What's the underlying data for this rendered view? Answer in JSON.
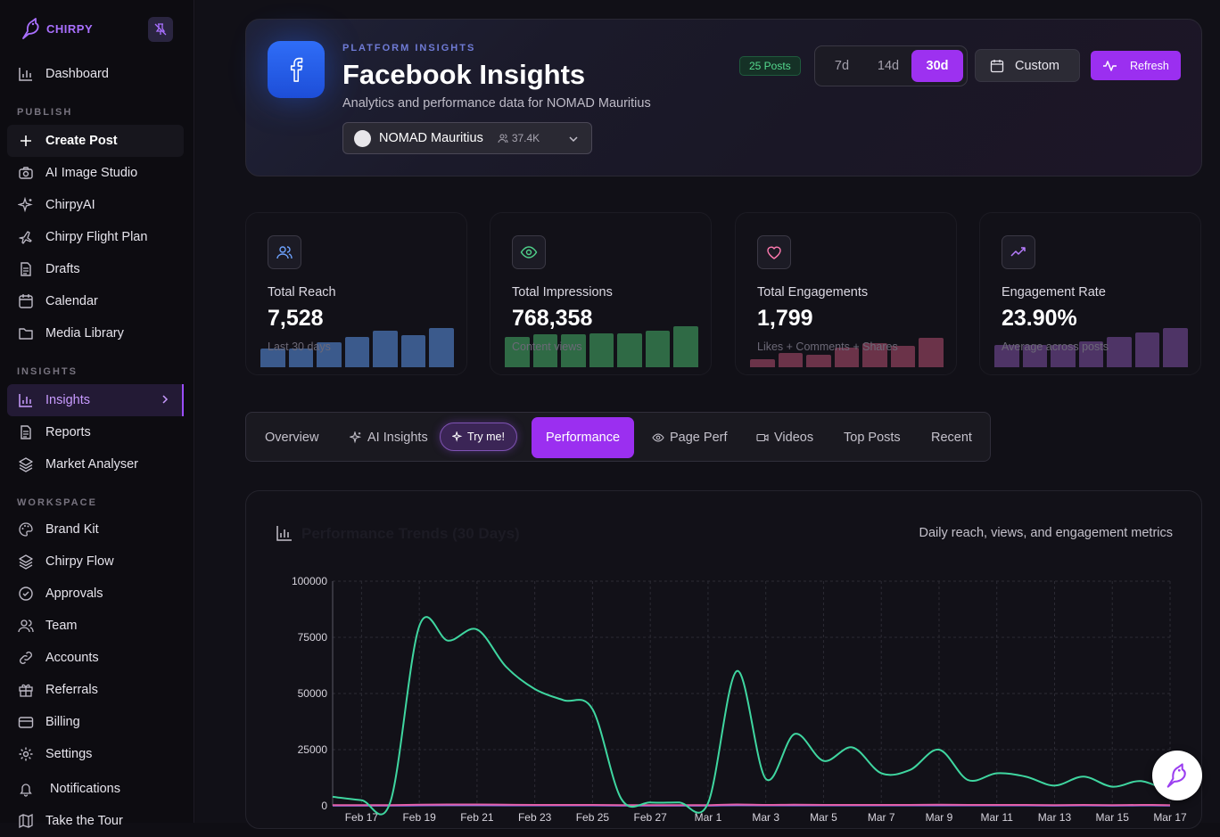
{
  "sidebar": {
    "brand": "CHIRPY",
    "sections": {
      "publish": "PUBLISH",
      "insights": "INSIGHTS",
      "workspace": "WORKSPACE"
    },
    "items": [
      {
        "label": "Dashboard",
        "icon": "bar-chart-icon"
      },
      {
        "label": "Create Post",
        "icon": "plus-icon"
      },
      {
        "label": "AI Image Studio",
        "icon": "camera-icon"
      },
      {
        "label": "ChirpyAI",
        "icon": "sparkles-icon"
      },
      {
        "label": "Chirpy Flight Plan",
        "icon": "plane-icon"
      },
      {
        "label": "Drafts",
        "icon": "document-icon"
      },
      {
        "label": "Calendar",
        "icon": "calendar-icon"
      },
      {
        "label": "Media Library",
        "icon": "folder-icon"
      },
      {
        "label": "Insights",
        "icon": "bar-chart-icon"
      },
      {
        "label": "Reports",
        "icon": "document-icon"
      },
      {
        "label": "Market Analyser",
        "icon": "layers-icon"
      },
      {
        "label": "Brand Kit",
        "icon": "palette-icon"
      },
      {
        "label": "Chirpy Flow",
        "icon": "layers-icon"
      },
      {
        "label": "Approvals",
        "icon": "check-circle-icon"
      },
      {
        "label": "Team",
        "icon": "users-icon"
      },
      {
        "label": "Accounts",
        "icon": "link-icon"
      },
      {
        "label": "Referrals",
        "icon": "gift-icon"
      },
      {
        "label": "Billing",
        "icon": "credit-card-icon"
      },
      {
        "label": "Settings",
        "icon": "gear-icon"
      },
      {
        "label": "Notifications",
        "icon": "bell-icon"
      },
      {
        "label": "Take the Tour",
        "icon": "map-icon"
      }
    ]
  },
  "header": {
    "eyebrow": "PLATFORM INSIGHTS",
    "title": "Facebook Insights",
    "subtitle": "Analytics and performance data for NOMAD Mauritius",
    "account": {
      "name": "NOMAD Mauritius",
      "followers": "37.4K"
    },
    "posts_badge": "25 Posts",
    "ranges": [
      "7d",
      "14d",
      "30d"
    ],
    "selected_range": "30d",
    "custom_label": "Custom",
    "refresh_label": "Refresh"
  },
  "stats": [
    {
      "label": "Total Reach",
      "value": "7,528",
      "sub": "Last 30 days",
      "color": "#3b5a8c",
      "icon": "users-icon",
      "icon_color": "#6ea3ff",
      "bars": [
        0.45,
        0.45,
        0.6,
        0.75,
        0.9,
        0.78,
        0.95
      ]
    },
    {
      "label": "Total Impressions",
      "value": "768,358",
      "sub": "Content views",
      "color": "#2f6a45",
      "icon": "eye-icon",
      "icon_color": "#4fd08a",
      "bars": [
        0.75,
        0.8,
        0.8,
        0.83,
        0.83,
        0.9,
        1.0
      ]
    },
    {
      "label": "Total Engagements",
      "value": "1,799",
      "sub": "Likes + Comments + Shares",
      "color": "#6b3349",
      "icon": "heart-icon",
      "icon_color": "#ff7ab0",
      "bars": [
        0.2,
        0.35,
        0.3,
        0.48,
        0.58,
        0.52,
        0.72
      ]
    },
    {
      "label": "Engagement Rate",
      "value": "23.90%",
      "sub": "Average across posts",
      "color": "#4e3466",
      "icon": "trending-up-icon",
      "icon_color": "#b77cff",
      "bars": [
        0.55,
        0.55,
        0.55,
        0.62,
        0.75,
        0.85,
        0.95
      ]
    }
  ],
  "tabs": [
    {
      "label": "Overview",
      "icon": ""
    },
    {
      "label": "AI Insights",
      "icon": "sparkles-icon"
    },
    {
      "label": "Performance",
      "icon": ""
    },
    {
      "label": "Page Perf",
      "icon": "eye-icon"
    },
    {
      "label": "Videos",
      "icon": "video-icon"
    },
    {
      "label": "Top Posts",
      "icon": ""
    },
    {
      "label": "Recent",
      "icon": ""
    }
  ],
  "try_me": "Try me!",
  "selected_tab": "Performance",
  "chart_card": {
    "title": "Performance Trends (30 Days)",
    "description": "Daily reach, views, and engagement metrics"
  },
  "chart_data": {
    "type": "line",
    "ylim": [
      0,
      100000
    ],
    "yticks": [
      0,
      25000,
      50000,
      75000,
      100000
    ],
    "x": [
      "Feb 16",
      "Feb 17",
      "Feb 18",
      "Feb 19",
      "Feb 20",
      "Feb 21",
      "Feb 22",
      "Feb 23",
      "Feb 24",
      "Feb 25",
      "Feb 26",
      "Feb 27",
      "Feb 28",
      "Mar 1",
      "Mar 2",
      "Mar 3",
      "Mar 4",
      "Mar 5",
      "Mar 6",
      "Mar 7",
      "Mar 8",
      "Mar 9",
      "Mar 10",
      "Mar 11",
      "Mar 12",
      "Mar 13",
      "Mar 14",
      "Mar 15",
      "Mar 16",
      "Mar 17"
    ],
    "xtick_labels": [
      "Feb 17",
      "Feb 19",
      "Feb 21",
      "Feb 23",
      "Feb 25",
      "Feb 27",
      "Mar 1",
      "Mar 3",
      "Mar 5",
      "Mar 7",
      "Mar 9",
      "Mar 11",
      "Mar 13",
      "Mar 15",
      "Mar 17"
    ],
    "series": [
      {
        "color": "#3fd6a0",
        "values": [
          4000,
          2500,
          1800,
          80000,
          73500,
          78500,
          62000,
          52000,
          47000,
          43000,
          3000,
          1500,
          1500,
          1200,
          60000,
          12000,
          32000,
          20000,
          26000,
          14500,
          16000,
          25000,
          11500,
          14500,
          13000,
          9000,
          13000,
          8500,
          11000,
          6000
        ]
      },
      {
        "color": "#e35fa8",
        "values": [
          300,
          300,
          300,
          500,
          600,
          600,
          500,
          400,
          400,
          400,
          300,
          300,
          300,
          300,
          600,
          400,
          500,
          400,
          400,
          400,
          400,
          500,
          400,
          400,
          400,
          300,
          400,
          300,
          400,
          300
        ]
      },
      {
        "color": "#7a78ff",
        "values": [
          100,
          100,
          100,
          200,
          300,
          300,
          200,
          200,
          200,
          200,
          100,
          100,
          100,
          100,
          300,
          200,
          200,
          200,
          200,
          200,
          200,
          200,
          200,
          200,
          200,
          100,
          200,
          100,
          200,
          100
        ]
      }
    ]
  }
}
